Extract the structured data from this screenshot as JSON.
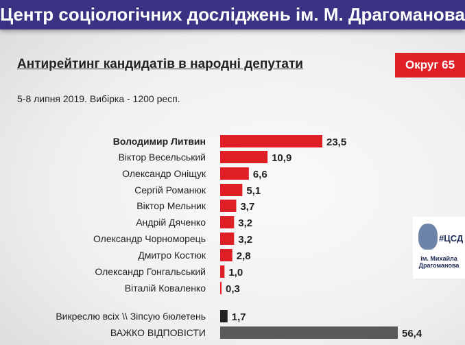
{
  "header": {
    "title": "Центр соціологічних досліджень ім. М. Драгоманова"
  },
  "badge": "Округ 65",
  "logo": {
    "title": "#ЦСД",
    "subtitle": "ім. Михайла Драгоманова"
  },
  "chart_data": {
    "type": "bar",
    "orientation": "horizontal",
    "title": "Антирейтинг кандидатів в народні депутати",
    "subtitle": "5-8 липня 2019. Вибірка - 1200 респ.",
    "categories": [
      "Володимир Литвин",
      "Віктор Весельський",
      "Олександр Оніщук",
      "Сергій Романюк",
      "Віктор Мельник",
      "Андрій Дяченко",
      "Олександр Чорноморець",
      "Дмитро Костюк",
      "Олександр Гонгальський",
      "Віталій Коваленко",
      "Викреслю всіх \\\\ Зіпсую бюлетень",
      "ВАЖКО ВІДПОВІСТИ"
    ],
    "values": [
      23.5,
      10.9,
      6.6,
      5.1,
      3.7,
      3.2,
      3.2,
      2.8,
      1.0,
      0.3,
      1.7,
      56.4
    ],
    "labels": [
      "23,5",
      "10,9",
      "6,6",
      "5,1",
      "3,7",
      "3,2",
      "3,2",
      "2,8",
      "1,0",
      "0,3",
      "1,7",
      "56,4"
    ],
    "colors": [
      "#e01e26",
      "#e01e26",
      "#e01e26",
      "#e01e26",
      "#e01e26",
      "#e01e26",
      "#e01e26",
      "#e01e26",
      "#e01e26",
      "#e01e26",
      "#222222",
      "#5a5a5a"
    ],
    "bold": [
      true,
      false,
      false,
      false,
      false,
      false,
      false,
      false,
      false,
      false,
      false,
      false
    ]
  }
}
